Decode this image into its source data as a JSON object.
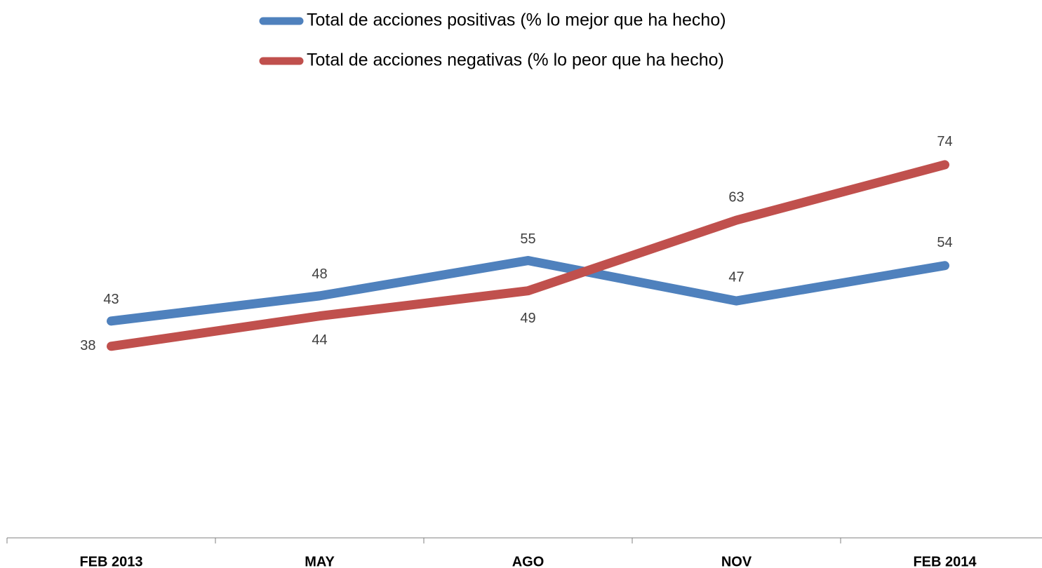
{
  "chart_data": {
    "type": "line",
    "categories": [
      "FEB 2013",
      "MAY",
      "AGO",
      "NOV",
      "FEB 2014"
    ],
    "series": [
      {
        "name": "Total de acciones positivas (% lo mejor que ha hecho)",
        "color": "#4f81bd",
        "values": [
          43,
          48,
          55,
          47,
          54
        ]
      },
      {
        "name": "Total de acciones negativas (% lo peor que ha hecho)",
        "color": "#c0504d",
        "values": [
          38,
          44,
          49,
          63,
          74
        ]
      }
    ],
    "ylim": [
      0,
      100
    ],
    "legend": "top",
    "data_labels": true
  }
}
